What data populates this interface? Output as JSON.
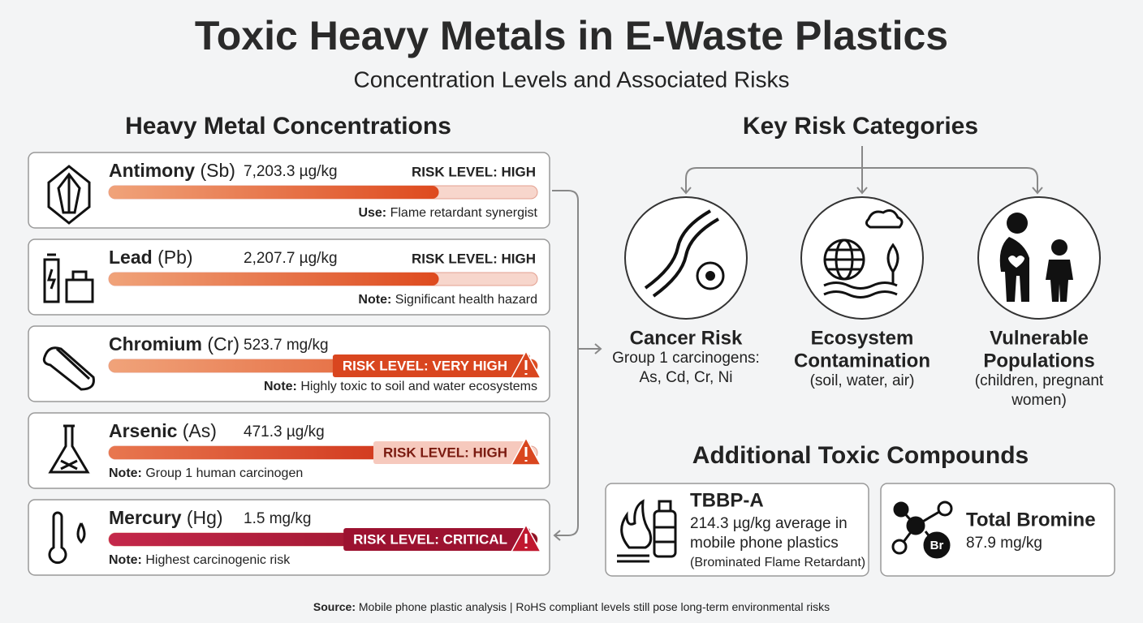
{
  "header": {
    "title": "Toxic Heavy Metals in E-Waste Plastics",
    "subtitle": "Concentration Levels and Associated Risks"
  },
  "metals": {
    "heading": "Heavy Metal Concentrations",
    "items": [
      {
        "name": "Antimony",
        "symbol": "(Sb)",
        "concentration": "7,203.3 µg/kg",
        "risk": "RISK LEVEL: HIGH",
        "note_label": "Use:",
        "note": "Flame retardant synergist"
      },
      {
        "name": "Lead",
        "symbol": "(Pb)",
        "concentration": "2,207.7 µg/kg",
        "risk": "RISK LEVEL: HIGH",
        "note_label": "Note:",
        "note": "Significant health hazard"
      },
      {
        "name": "Chromium",
        "symbol": "(Cr)",
        "concentration": "523.7 mg/kg",
        "risk": "RISK LEVEL: VERY HIGH",
        "note_label": "Note:",
        "note": "Highly toxic to soil and water ecosystems"
      },
      {
        "name": "Arsenic",
        "symbol": "(As)",
        "concentration": "471.3 µg/kg",
        "risk": "RISK LEVEL: HIGH",
        "note_label": "Note:",
        "note": "Group 1 human carcinogen"
      },
      {
        "name": "Mercury",
        "symbol": "(Hg)",
        "concentration": "1.5 mg/kg",
        "risk": "RISK LEVEL: CRITICAL",
        "note_label": "Note:",
        "note": "Highest carcinogenic risk"
      }
    ]
  },
  "risks": {
    "heading": "Key Risk Categories",
    "items": [
      {
        "title": [
          "Cancer Risk"
        ],
        "detail": [
          "Group 1 carcinogens:",
          "As, Cd, Cr, Ni"
        ]
      },
      {
        "title": [
          "Ecosystem",
          "Contamination"
        ],
        "detail": [
          "(soil, water, air)"
        ]
      },
      {
        "title": [
          "Vulnerable",
          "Populations"
        ],
        "detail": [
          "(children, pregnant",
          "women)"
        ]
      }
    ]
  },
  "compounds": {
    "heading": "Additional Toxic Compounds",
    "items": [
      {
        "name": "TBBP-A",
        "lines": [
          "214.3 µg/kg average in",
          "mobile phone plastics",
          "(Brominated Flame Retardant)"
        ]
      },
      {
        "name": "Total Bromine",
        "icon_label": "Br",
        "lines": [
          "87.9 mg/kg"
        ]
      }
    ]
  },
  "footer": {
    "label": "Source:",
    "text": "Mobile phone plastic analysis | RoHS compliant levels still pose long-term environmental risks"
  }
}
